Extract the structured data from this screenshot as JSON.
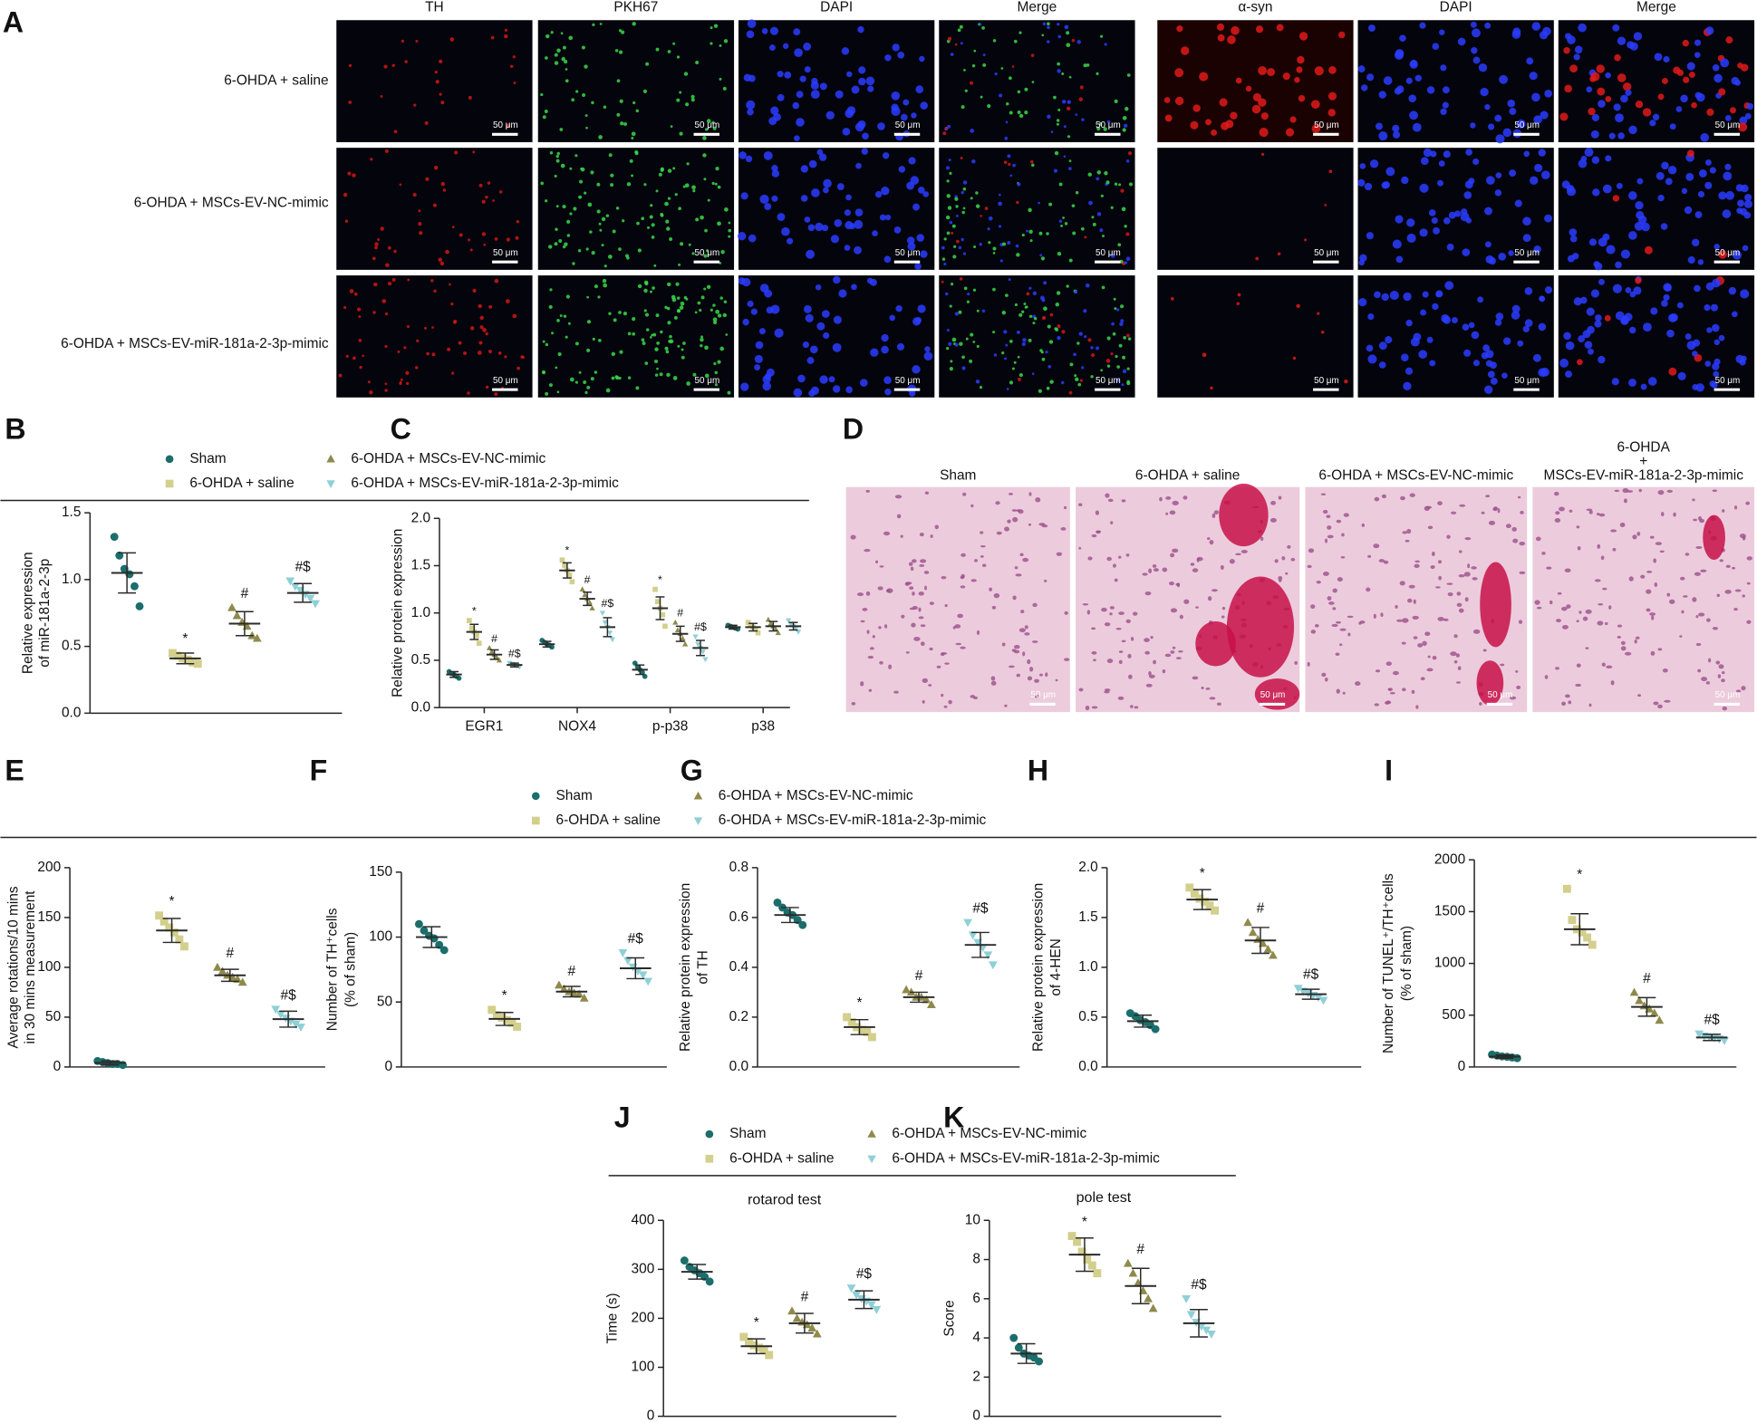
{
  "figure": {
    "panel_letters": [
      "A",
      "B",
      "C",
      "D",
      "E",
      "F",
      "G",
      "H",
      "I",
      "J",
      "K"
    ],
    "scale_bar": "50 μm",
    "panel_A": {
      "columns": [
        "TH",
        "PKH67",
        "DAPI",
        "Merge",
        "α-syn",
        "DAPI",
        "Merge"
      ],
      "rows": [
        "6-OHDA + saline",
        "6-OHDA + MSCs-EV-NC-mimic",
        "6-OHDA + MSCs-EV-miR-181a-2-3p-mimic"
      ]
    },
    "panel_D": {
      "columns": [
        [
          "Sham"
        ],
        [
          "6-OHDA + saline"
        ],
        [
          "6-OHDA + MSCs-EV-NC-mimic"
        ],
        [
          "6-OHDA",
          "+",
          "MSCs-EV-miR-181a-2-3p-mimic"
        ]
      ]
    },
    "groups": [
      {
        "name": "Sham",
        "color": "#1b6e6b",
        "marker": "circle"
      },
      {
        "name": "6-OHDA + saline",
        "color": "#d3cf8c",
        "marker": "square"
      },
      {
        "name": "6-OHDA + MSCs-EV-NC-mimic",
        "color": "#8f8a4c",
        "marker": "triangle"
      },
      {
        "name": "6-OHDA + MSCs-EV-miR-181a-2-3p-mimic",
        "color": "#8fd0d6",
        "marker": "triangle-down"
      }
    ]
  },
  "chart_data": [
    {
      "type": "dot",
      "ylabel": [
        "Relative  expression",
        "of miR-181a-2-3p"
      ],
      "ylim": [
        0,
        1.5
      ],
      "yticks": [
        {
          "value": 0,
          "label": "0.0"
        },
        0.5,
        {
          "value": 1,
          "label": "1.0"
        },
        1.5
      ],
      "series": [
        {
          "values": [
            1.05
          ],
          "errors": [
            0.15
          ],
          "points": [
            [
              1.32,
              1.18,
              1.08,
              1.04,
              0.95,
              0.8
            ]
          ],
          "annotations": [
            null
          ]
        },
        {
          "values": [
            0.41
          ],
          "errors": [
            0.04
          ],
          "points": [
            [
              0.45,
              0.43,
              0.41,
              0.4,
              0.38,
              0.37
            ]
          ],
          "annotations": [
            "*"
          ]
        },
        {
          "values": [
            0.67
          ],
          "errors": [
            0.09
          ],
          "points": [
            [
              0.79,
              0.73,
              0.68,
              0.65,
              0.58,
              0.56
            ]
          ],
          "annotations": [
            "#"
          ]
        },
        {
          "values": [
            0.9
          ],
          "errors": [
            0.07
          ],
          "points": [
            [
              0.99,
              0.95,
              0.92,
              0.89,
              0.86,
              0.82
            ]
          ],
          "annotations": [
            "#$"
          ]
        }
      ]
    },
    {
      "type": "dot",
      "ylabel": [
        "Relative protein expression"
      ],
      "categories": [
        "EGR1",
        "NOX4",
        "p-p38",
        "p38"
      ],
      "ylim": [
        0,
        2
      ],
      "yticks": [
        {
          "value": 0,
          "label": "0.0"
        },
        0.5,
        {
          "value": 1,
          "label": "1.0"
        },
        1.5,
        {
          "value": 2,
          "label": "2.0"
        }
      ],
      "series": [
        {
          "values": [
            0.35,
            0.67,
            0.4,
            0.85
          ],
          "errors": [
            0.03,
            0.03,
            0.05,
            0.02
          ],
          "points": [
            [
              0.38,
              0.36,
              0.35,
              0.33,
              0.31
            ],
            [
              0.71,
              0.69,
              0.67,
              0.66,
              0.64
            ],
            [
              0.47,
              0.43,
              0.4,
              0.37,
              0.33
            ],
            [
              0.87,
              0.86,
              0.85,
              0.84,
              0.83
            ]
          ],
          "annotations": [
            null,
            null,
            null,
            null
          ]
        },
        {
          "values": [
            0.8,
            1.45,
            1.05,
            0.85
          ],
          "errors": [
            0.08,
            0.08,
            0.12,
            0.04
          ],
          "points": [
            [
              0.92,
              0.84,
              0.8,
              0.76,
              0.68
            ],
            [
              1.56,
              1.5,
              1.45,
              1.4,
              1.33
            ],
            [
              1.25,
              1.12,
              1.05,
              0.98,
              0.86
            ],
            [
              0.9,
              0.87,
              0.85,
              0.83,
              0.79
            ]
          ],
          "annotations": [
            "*",
            "*",
            "*",
            null
          ]
        },
        {
          "values": [
            0.56,
            1.15,
            0.78,
            0.86
          ],
          "errors": [
            0.05,
            0.07,
            0.08,
            0.05
          ],
          "points": [
            [
              0.63,
              0.59,
              0.56,
              0.53,
              0.5
            ],
            [
              1.25,
              1.19,
              1.15,
              1.11,
              1.05
            ],
            [
              0.9,
              0.82,
              0.78,
              0.73,
              0.67
            ],
            [
              0.93,
              0.89,
              0.86,
              0.83,
              0.79
            ]
          ],
          "annotations": [
            "#",
            "#",
            "#",
            null
          ]
        },
        {
          "values": [
            0.45,
            0.85,
            0.63,
            0.86
          ],
          "errors": [
            0.02,
            0.1,
            0.08,
            0.04
          ],
          "points": [
            [
              0.47,
              0.46,
              0.45,
              0.44,
              0.43
            ],
            [
              1,
              0.9,
              0.85,
              0.79,
              0.72
            ],
            [
              0.75,
              0.67,
              0.63,
              0.59,
              0.51
            ],
            [
              0.92,
              0.88,
              0.86,
              0.84,
              0.8
            ]
          ],
          "annotations": [
            "#$",
            "#$",
            "#$",
            null
          ]
        }
      ]
    },
    {
      "type": "dot",
      "ylabel": [
        "Average rotations/10 mins",
        "in 30 mins measurement"
      ],
      "ylim": [
        0,
        200
      ],
      "yticks": [
        0,
        50,
        100,
        150,
        200
      ],
      "series": [
        {
          "values": [
            4
          ],
          "errors": [
            2
          ],
          "points": [
            [
              6,
              5,
              4,
              3,
              3,
              2
            ]
          ],
          "annotations": [
            null
          ]
        },
        {
          "values": [
            137
          ],
          "errors": [
            12
          ],
          "points": [
            [
              152,
              146,
              140,
              135,
              128,
              121
            ]
          ],
          "annotations": [
            "*"
          ]
        },
        {
          "values": [
            92
          ],
          "errors": [
            6
          ],
          "points": [
            [
              100,
              96,
              92,
              90,
              88,
              85
            ]
          ],
          "annotations": [
            "#"
          ]
        },
        {
          "values": [
            48
          ],
          "errors": [
            8
          ],
          "points": [
            [
              58,
              53,
              49,
              46,
              43,
              40
            ]
          ],
          "annotations": [
            "#$"
          ]
        }
      ]
    },
    {
      "type": "dot",
      "ylabel": [
        "Number of TH⁺cells",
        "(% of sham)"
      ],
      "ylim": [
        0,
        150
      ],
      "yticks": [
        0,
        50,
        100,
        150
      ],
      "series": [
        {
          "values": [
            100
          ],
          "errors": [
            8
          ],
          "points": [
            [
              110,
              105,
              101,
              99,
              94,
              90
            ]
          ],
          "annotations": [
            null
          ]
        },
        {
          "values": [
            37
          ],
          "errors": [
            5
          ],
          "points": [
            [
              44,
              40,
              38,
              36,
              34,
              31
            ]
          ],
          "annotations": [
            "*"
          ]
        },
        {
          "values": [
            58
          ],
          "errors": [
            4
          ],
          "points": [
            [
              63,
              60,
              58,
              57,
              56,
              53
            ]
          ],
          "annotations": [
            "#"
          ]
        },
        {
          "values": [
            76
          ],
          "errors": [
            8
          ],
          "points": [
            [
              88,
              82,
              77,
              74,
              71,
              66
            ]
          ],
          "annotations": [
            "#$"
          ]
        }
      ]
    },
    {
      "type": "dot",
      "ylabel": [
        "Relative protein expression",
        "of TH"
      ],
      "ylim": [
        0,
        0.8
      ],
      "yticks": [
        {
          "value": 0,
          "label": "0.0"
        },
        0.2,
        0.4,
        0.6,
        0.8
      ],
      "series": [
        {
          "values": [
            0.61
          ],
          "errors": [
            0.03
          ],
          "points": [
            [
              0.66,
              0.64,
              0.62,
              0.61,
              0.59,
              0.57
            ]
          ],
          "annotations": [
            null
          ]
        },
        {
          "values": [
            0.16
          ],
          "errors": [
            0.03
          ],
          "points": [
            [
              0.2,
              0.18,
              0.16,
              0.15,
              0.14,
              0.12
            ]
          ],
          "annotations": [
            "*"
          ]
        },
        {
          "values": [
            0.28
          ],
          "errors": [
            0.02
          ],
          "points": [
            [
              0.31,
              0.3,
              0.28,
              0.28,
              0.27,
              0.25
            ]
          ],
          "annotations": [
            "#"
          ]
        },
        {
          "values": [
            0.49
          ],
          "errors": [
            0.05
          ],
          "points": [
            [
              0.58,
              0.53,
              0.5,
              0.48,
              0.45,
              0.41
            ]
          ],
          "annotations": [
            "#$"
          ]
        }
      ]
    },
    {
      "type": "dot",
      "ylabel": [
        "Relative protein expression",
        "of 4-HEN"
      ],
      "ylim": [
        0,
        2
      ],
      "yticks": [
        {
          "value": 0,
          "label": "0.0"
        },
        0.5,
        {
          "value": 1,
          "label": "1.0"
        },
        1.5,
        {
          "value": 2,
          "label": "2.0"
        }
      ],
      "series": [
        {
          "values": [
            0.46
          ],
          "errors": [
            0.06
          ],
          "points": [
            [
              0.54,
              0.51,
              0.47,
              0.45,
              0.42,
              0.38
            ]
          ],
          "annotations": [
            null
          ]
        },
        {
          "values": [
            1.68
          ],
          "errors": [
            0.1
          ],
          "points": [
            [
              1.8,
              1.74,
              1.69,
              1.66,
              1.62,
              1.57
            ]
          ],
          "annotations": [
            "*"
          ]
        },
        {
          "values": [
            1.27
          ],
          "errors": [
            0.13
          ],
          "points": [
            [
              1.45,
              1.35,
              1.28,
              1.24,
              1.18,
              1.12
            ]
          ],
          "annotations": [
            "#"
          ]
        },
        {
          "values": [
            0.73
          ],
          "errors": [
            0.05
          ],
          "points": [
            [
              0.79,
              0.76,
              0.74,
              0.72,
              0.7,
              0.67
            ]
          ],
          "annotations": [
            "#$"
          ]
        }
      ]
    },
    {
      "type": "dot",
      "ylabel": [
        "Number of TUNEL⁺/TH⁺cells",
        "(% of sham)"
      ],
      "ylim": [
        0,
        2000
      ],
      "yticks": [
        0,
        500,
        1000,
        1500,
        2000
      ],
      "series": [
        {
          "values": [
            100
          ],
          "errors": [
            15
          ],
          "points": [
            [
              120,
              110,
              102,
              98,
              92,
              85
            ]
          ],
          "annotations": [
            null
          ]
        },
        {
          "values": [
            1330
          ],
          "errors": [
            150
          ],
          "points": [
            [
              1720,
              1420,
              1330,
              1300,
              1250,
              1180
            ]
          ],
          "annotations": [
            "*"
          ]
        },
        {
          "values": [
            580
          ],
          "errors": [
            90
          ],
          "points": [
            [
              720,
              640,
              590,
              560,
              520,
              450
            ]
          ],
          "annotations": [
            "#"
          ]
        },
        {
          "values": [
            285
          ],
          "errors": [
            30
          ],
          "points": [
            [
              320,
              300,
              290,
              280,
              270,
              255
            ]
          ],
          "annotations": [
            "#$"
          ]
        }
      ]
    },
    {
      "type": "dot",
      "title": "rotarod test",
      "ylabel": [
        "Time (s)"
      ],
      "ylim": [
        0,
        400
      ],
      "yticks": [
        0,
        100,
        200,
        300,
        400
      ],
      "series": [
        {
          "values": [
            295
          ],
          "errors": [
            15
          ],
          "points": [
            [
              318,
              305,
              298,
              292,
              285,
              275
            ]
          ],
          "annotations": [
            null
          ]
        },
        {
          "values": [
            143
          ],
          "errors": [
            15
          ],
          "points": [
            [
              162,
              152,
              145,
              140,
              135,
              125
            ]
          ],
          "annotations": [
            "*"
          ]
        },
        {
          "values": [
            190
          ],
          "errors": [
            20
          ],
          "points": [
            [
              215,
              200,
              192,
              187,
              180,
              168
            ]
          ],
          "annotations": [
            "#"
          ]
        },
        {
          "values": [
            238
          ],
          "errors": [
            18
          ],
          "points": [
            [
              262,
              248,
              240,
              235,
              228,
              218
            ]
          ],
          "annotations": [
            "#$"
          ]
        }
      ]
    },
    {
      "type": "dot",
      "title": "pole test",
      "ylabel": [
        "Score"
      ],
      "ylim": [
        0,
        10
      ],
      "yticks": [
        0,
        2,
        4,
        6,
        8,
        10
      ],
      "series": [
        {
          "values": [
            3.2
          ],
          "errors": [
            0.5
          ],
          "points": [
            [
              4,
              3.5,
              3.2,
              3.1,
              3,
              2.8
            ]
          ],
          "annotations": [
            null
          ]
        },
        {
          "values": [
            8.25
          ],
          "errors": [
            0.85
          ],
          "points": [
            [
              9.2,
              8.9,
              8.4,
              8,
              7.7,
              7.3
            ]
          ],
          "annotations": [
            "*"
          ]
        },
        {
          "values": [
            6.65
          ],
          "errors": [
            0.9
          ],
          "points": [
            [
              7.8,
              7.3,
              6.8,
              6.4,
              6,
              5.5
            ]
          ],
          "annotations": [
            "#"
          ]
        },
        {
          "values": [
            4.75
          ],
          "errors": [
            0.7
          ],
          "points": [
            [
              6,
              5.2,
              4.8,
              4.6,
              4.4,
              4.2
            ]
          ],
          "annotations": [
            "#$"
          ]
        }
      ]
    }
  ]
}
